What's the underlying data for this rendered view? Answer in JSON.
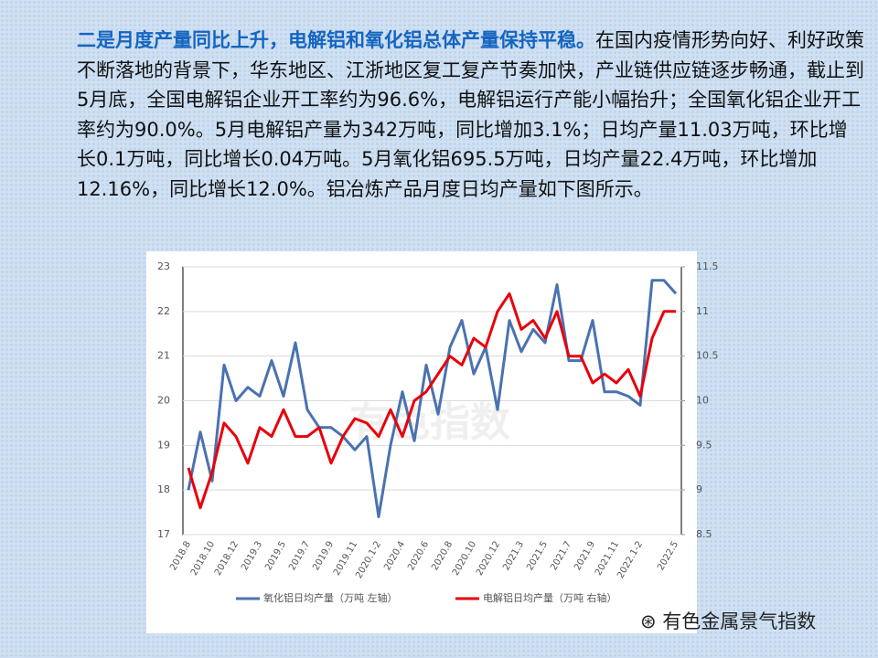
{
  "paragraph": {
    "highlight": "二是月度产量同比上升，电解铝和氧化铝总体产量保持平稳。",
    "text": "在国内疫情形势向好、利好政策不断落地的背景下，华东地区、江浙地区复工复产节奏加快，产业链供应链逐步畅通，截止到5月底，全国电解铝企业开工率约为96.6%，电解铝运行产能小幅抬升；全国氧化铝企业开工率约为90.0%。5月电解铝产量为342万吨，同比增加3.1%；日均产量11.03万吨，环比增长0.1万吨，同比增长0.04万吨。5月氧化铝695.5万吨，日均产量22.4万吨，环比增加12.16%，同比增长12.0%。铝冶炼产品月度日均产量如下图所示。"
  },
  "chart_watermark": "有色指数",
  "footer": "有色金属景气指数",
  "chart_data": {
    "type": "line",
    "categories": [
      "2018.8",
      null,
      "2018.10",
      null,
      "2018.12",
      null,
      "2019.3",
      null,
      "2019.5",
      null,
      "2019.7",
      null,
      "2019.9",
      null,
      "2019.11",
      null,
      "2020.1-2",
      null,
      "2020.4",
      null,
      "2020.6",
      null,
      "2020.8",
      null,
      "2020.10",
      null,
      "2020.12",
      null,
      "2021.3",
      null,
      "2021.5",
      null,
      "2021.7",
      null,
      "2021.9",
      null,
      "2021.11",
      null,
      "2022.1-2",
      null,
      null,
      "2022.5"
    ],
    "series": [
      {
        "name": "氧化铝日均产量（万吨   左轴）",
        "color": "#4a72b0",
        "values": [
          18.0,
          19.3,
          18.2,
          20.8,
          20.0,
          20.3,
          20.1,
          20.9,
          20.1,
          21.3,
          19.8,
          19.4,
          19.4,
          19.2,
          18.9,
          19.2,
          17.4,
          19.0,
          20.2,
          19.1,
          20.8,
          19.7,
          21.2,
          21.8,
          20.6,
          21.2,
          19.8,
          21.8,
          21.1,
          21.6,
          21.3,
          22.6,
          20.9,
          20.9,
          21.8,
          20.2,
          20.2,
          20.1,
          19.9,
          22.7,
          22.7,
          22.4
        ]
      },
      {
        "name": "电解铝日均产量（万吨   右轴）",
        "color": "#e8000b",
        "axis": "y2",
        "values": [
          9.25,
          8.8,
          9.2,
          9.75,
          9.6,
          9.3,
          9.7,
          9.6,
          9.9,
          9.6,
          9.6,
          9.7,
          9.3,
          9.6,
          9.8,
          9.75,
          9.6,
          9.9,
          9.6,
          10.0,
          10.1,
          10.3,
          10.5,
          10.4,
          10.7,
          10.6,
          11.0,
          11.2,
          10.8,
          10.9,
          10.7,
          11.0,
          10.5,
          10.5,
          10.2,
          10.3,
          10.2,
          10.35,
          10.05,
          10.7,
          11.0,
          11.0
        ]
      }
    ],
    "ylim": [
      17,
      23
    ],
    "yticks": [
      17,
      18,
      19,
      20,
      21,
      22,
      23
    ],
    "y2lim": [
      8.5,
      11.5
    ],
    "y2ticks": [
      8.5,
      9,
      9.5,
      10,
      10.5,
      11,
      11.5
    ],
    "grid": true
  }
}
